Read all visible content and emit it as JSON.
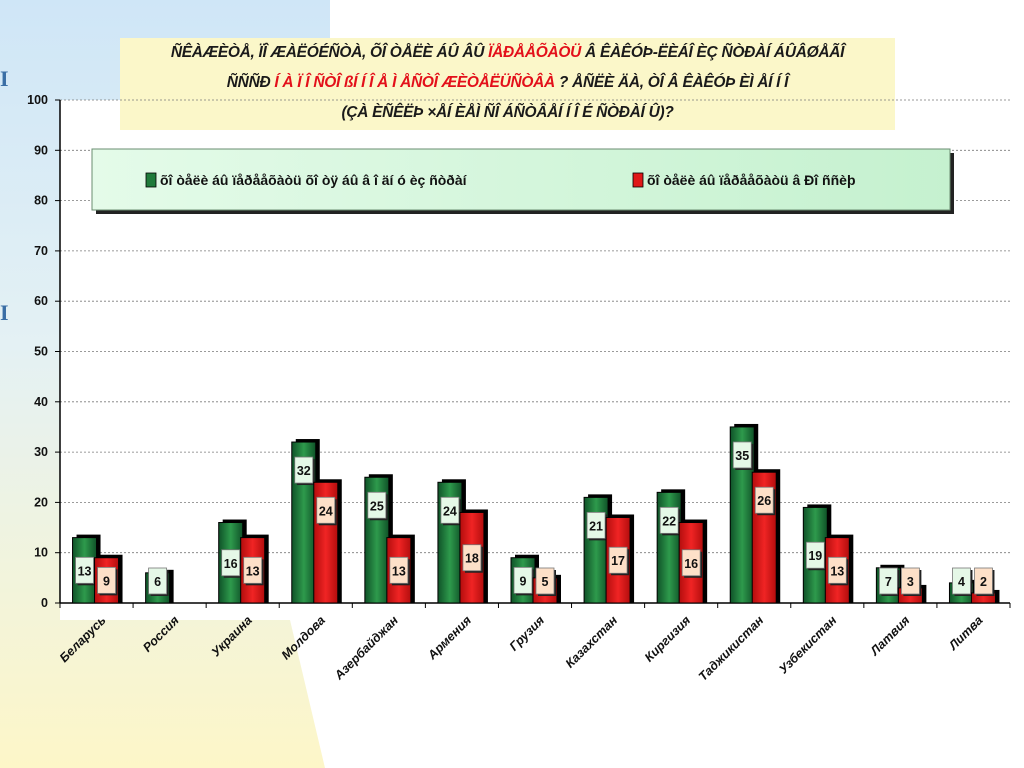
{
  "side_marks": [
    "I",
    "I"
  ],
  "title_lines": [
    [
      {
        "t": "ÑÊÀÆÈÒÅ, ÏÎ ÆÀËÓÉÑÒÀ, ÕÎ ÒÅËÈ ÁÛ ÂÛ ",
        "red": false
      },
      {
        "t": "ÏÅÐÅÅÕÀÒÜ",
        "red": true
      },
      {
        "t": " Â ÊÀÊÓÞ-ËÈÁÎ  ÈÇ ÑÒÐÀÍ  ÁÛÂØÅÃÎ",
        "red": false
      }
    ],
    [
      {
        "t": "ÑÑÑÐ ",
        "red": false
      },
      {
        "t": "Í À Ï Î ÑÒÎ ßÍ Í Î Å Ì ÅÑÒÎ  ÆÈÒÅËÜÑÒÂÀ",
        "red": true
      },
      {
        "t": " ? ÅÑËÈ ÄÀ, ÒÎ  Â ÊÀÊÓÞ  ÈÌ ÅÍ Í Î",
        "red": false
      }
    ],
    [
      {
        "t": "(ÇÀ ÈÑÊËÞ ×ÅÍ ÈÅÌ  ÑÎ ÁÑÒÂÅÍ Í Î É ÑÒÐÀÍ Û)?",
        "red": false
      }
    ]
  ],
  "chart_data": {
    "type": "bar",
    "categories": [
      "Беларусь",
      "Россия",
      "Украина",
      "Молдова",
      "Азербайджан",
      "Армения",
      "Грузия",
      "Казахстан",
      "Киргизия",
      "Таджикистан",
      "Узбекистан",
      "Латвия",
      "Литва"
    ],
    "series": [
      {
        "name": "õî òåëè áû ïåðååõàòü õî òÿ áû  â î äí ó èç ñòðàí",
        "color": "#1f7a3a",
        "values": [
          13,
          6,
          16,
          32,
          25,
          24,
          9,
          21,
          22,
          35,
          19,
          7,
          4
        ]
      },
      {
        "name": "õî òåëè áû ïåðååõàòü â Ðî ññèþ",
        "color": "#e01818",
        "values": [
          9,
          0,
          13,
          24,
          13,
          18,
          5,
          17,
          16,
          26,
          13,
          3,
          2
        ]
      }
    ],
    "data_labels": [
      [
        "13",
        "6",
        "16",
        "32",
        "25",
        "24",
        "9",
        "21",
        "22",
        "35",
        "19",
        "7",
        "4"
      ],
      [
        "9",
        "",
        "13",
        "24",
        "13",
        "18",
        "5",
        "17",
        "16",
        "26",
        "13",
        "3",
        "2"
      ]
    ],
    "ylim": [
      0,
      100
    ],
    "yticks": [
      0,
      10,
      20,
      30,
      40,
      50,
      60,
      70,
      80,
      90,
      100
    ],
    "grid": true,
    "legend_position": "top"
  }
}
